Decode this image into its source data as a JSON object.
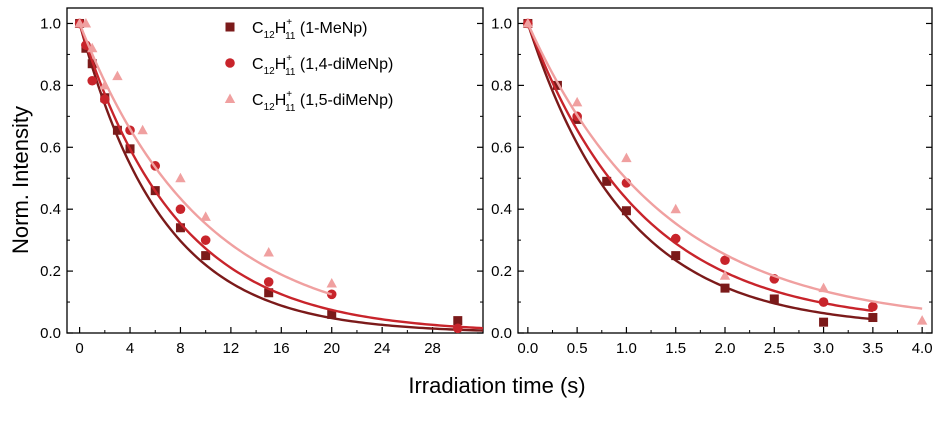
{
  "chart_data": {
    "type": "scatter",
    "ylabel": "Norm. Intensity",
    "xlabel": "Irradiation time (s)",
    "legend": {
      "placement": "top-right of left panel",
      "entries": [
        {
          "formula_main": "C",
          "formula_sub1": "12",
          "formula_mid": "H",
          "formula_sup": "+",
          "formula_sub2": "11",
          "suffix": " (1-MeNp)",
          "color": "#7b1a1a",
          "marker": "square"
        },
        {
          "formula_main": "C",
          "formula_sub1": "12",
          "formula_mid": "H",
          "formula_sup": "+",
          "formula_sub2": "11",
          "suffix": " (1,4-diMeNp)",
          "color": "#c8242b",
          "marker": "circle"
        },
        {
          "formula_main": "C",
          "formula_sub1": "12",
          "formula_mid": "H",
          "formula_sup": "+",
          "formula_sub2": "11",
          "suffix": " (1,5-diMeNp)",
          "color": "#f0a0a0",
          "marker": "triangle"
        }
      ]
    },
    "panels": [
      {
        "xlim": [
          -1,
          32
        ],
        "ylim": [
          0,
          1.05
        ],
        "xticks": [
          0,
          4,
          8,
          12,
          16,
          20,
          24,
          28
        ],
        "yticks": [
          0.0,
          0.2,
          0.4,
          0.6,
          0.8,
          1.0
        ],
        "xtick_labels": [
          "0",
          "4",
          "8",
          "12",
          "16",
          "20",
          "24",
          "28"
        ],
        "ytick_labels": [
          "0.0",
          "0.2",
          "0.4",
          "0.6",
          "0.8",
          "1.0"
        ],
        "series": [
          {
            "color": "#7b1a1a",
            "marker": "square",
            "x": [
              0,
              0.5,
              1,
              2,
              3,
              4,
              6,
              8,
              10,
              15,
              20,
              30
            ],
            "y": [
              1.0,
              0.92,
              0.87,
              0.76,
              0.655,
              0.595,
              0.46,
              0.34,
              0.25,
              0.13,
              0.06,
              0.04
            ],
            "fit": {
              "tau": 6.6,
              "offset": 0.0
            }
          },
          {
            "color": "#c8242b",
            "marker": "circle",
            "x": [
              0,
              0.5,
              1,
              2,
              4,
              6,
              8,
              10,
              15,
              20,
              30
            ],
            "y": [
              1.0,
              0.93,
              0.815,
              0.755,
              0.655,
              0.54,
              0.4,
              0.3,
              0.165,
              0.125,
              0.015
            ],
            "fit": {
              "tau": 7.7,
              "offset": 0.0
            }
          },
          {
            "color": "#f0a0a0",
            "marker": "triangle",
            "x": [
              0,
              0.5,
              1,
              2,
              3,
              5,
              8,
              10,
              15,
              20
            ],
            "y": [
              1.0,
              1.0,
              0.92,
              0.8,
              0.83,
              0.655,
              0.5,
              0.375,
              0.26,
              0.16
            ],
            "fit": {
              "tau": 9.6,
              "offset": 0.0,
              "xmax": 20
            }
          }
        ]
      },
      {
        "xlim": [
          -0.1,
          4.1
        ],
        "ylim": [
          0,
          1.05
        ],
        "xticks": [
          0.0,
          0.5,
          1.0,
          1.5,
          2.0,
          2.5,
          3.0,
          3.5,
          4.0
        ],
        "yticks": [
          0.0,
          0.2,
          0.4,
          0.6,
          0.8,
          1.0
        ],
        "xtick_labels": [
          "0.0",
          "0.5",
          "1.0",
          "1.5",
          "2.0",
          "2.5",
          "3.0",
          "3.5",
          "4.0"
        ],
        "ytick_labels": [
          "0.0",
          "0.2",
          "0.4",
          "0.6",
          "0.8",
          "1.0"
        ],
        "series": [
          {
            "color": "#7b1a1a",
            "marker": "square",
            "x": [
              0,
              0.3,
              0.5,
              0.8,
              1.0,
              1.5,
              2.0,
              2.5,
              3.0,
              3.5
            ],
            "y": [
              1.0,
              0.8,
              0.69,
              0.49,
              0.395,
              0.25,
              0.145,
              0.11,
              0.035,
              0.05
            ],
            "fit": {
              "tau": 1.0,
              "offset": 0.015,
              "xmax": 3.5
            }
          },
          {
            "color": "#c8242b",
            "marker": "circle",
            "x": [
              0,
              0.5,
              1.0,
              1.5,
              2.0,
              2.5,
              3.0,
              3.5
            ],
            "y": [
              1.0,
              0.7,
              0.485,
              0.305,
              0.235,
              0.175,
              0.1,
              0.085
            ],
            "fit": {
              "tau": 1.15,
              "offset": 0.025,
              "xmax": 3.5
            }
          },
          {
            "color": "#f0a0a0",
            "marker": "triangle",
            "x": [
              0,
              0.5,
              1.0,
              1.5,
              2.0,
              3.0,
              4.0
            ],
            "y": [
              1.0,
              0.745,
              0.565,
              0.4,
              0.185,
              0.145,
              0.04
            ],
            "fit": {
              "tau": 1.38,
              "offset": 0.025,
              "xmax": 4.0
            }
          }
        ]
      }
    ]
  }
}
